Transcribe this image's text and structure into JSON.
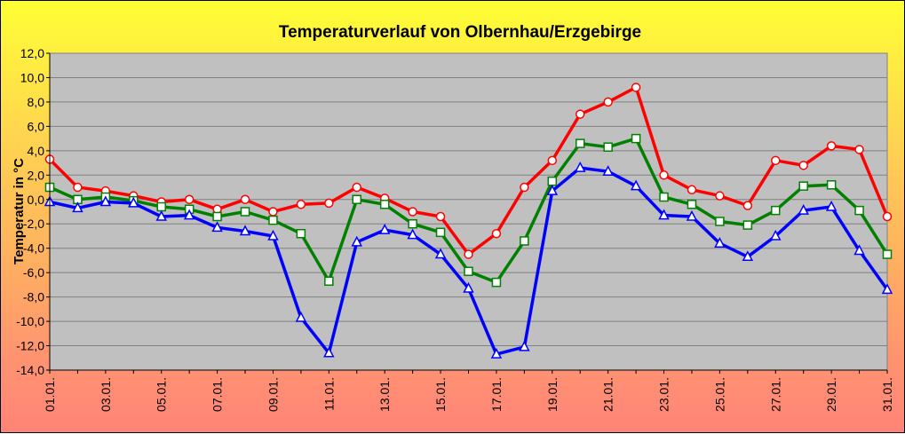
{
  "chart_data": {
    "type": "line",
    "title": "Temperaturverlauf von Olbernhau/Erzgebirge",
    "xlabel": "",
    "ylabel": "Temperatur in °C",
    "ylim": [
      -14,
      12
    ],
    "y_ticks": [
      "12,0",
      "10,0",
      "8,0",
      "6,0",
      "4,0",
      "2,0",
      "0,0",
      "-2,0",
      "-4,0",
      "-6,0",
      "-8,0",
      "-10,0",
      "-12,0",
      "-14,0"
    ],
    "x": [
      "01.01.",
      "02.01.",
      "03.01.",
      "04.01.",
      "05.01.",
      "06.01.",
      "07.01.",
      "08.01.",
      "09.01.",
      "10.01.",
      "11.01.",
      "12.01.",
      "13.01.",
      "14.01.",
      "15.01.",
      "16.01.",
      "17.01.",
      "18.01.",
      "19.01.",
      "20.01.",
      "21.01.",
      "22.01.",
      "23.01.",
      "24.01.",
      "25.01.",
      "26.01.",
      "27.01.",
      "28.01.",
      "29.01.",
      "30.01.",
      "31.01."
    ],
    "x_tick_labels": [
      "01.01.",
      "03.01.",
      "05.01.",
      "07.01.",
      "09.01.",
      "11.01.",
      "13.01.",
      "15.01.",
      "17.01.",
      "19.01.",
      "21.01.",
      "23.01.",
      "25.01.",
      "27.01.",
      "29.01.",
      "31.01."
    ],
    "grid": true,
    "legend": "none",
    "plot_background": "#c0c0c0",
    "series": [
      {
        "color": "#ff0000",
        "marker": "circle",
        "values": [
          3.3,
          1.0,
          0.7,
          0.3,
          -0.2,
          0.0,
          -0.8,
          0.0,
          -1.0,
          -0.4,
          -0.3,
          1.0,
          0.1,
          -1.0,
          -1.4,
          -4.5,
          -2.8,
          1.0,
          3.2,
          7.0,
          8.0,
          9.2,
          2.0,
          0.8,
          0.3,
          -0.5,
          3.2,
          2.8,
          4.4,
          4.1,
          -1.4
        ]
      },
      {
        "color": "#008000",
        "marker": "square",
        "values": [
          1.0,
          0.0,
          0.2,
          -0.1,
          -0.6,
          -0.8,
          -1.4,
          -1.0,
          -1.7,
          -2.8,
          -6.7,
          0.0,
          -0.4,
          -2.0,
          -2.7,
          -5.9,
          -6.8,
          -3.4,
          1.5,
          4.6,
          4.3,
          5.0,
          0.2,
          -0.4,
          -1.8,
          -2.1,
          -0.9,
          1.1,
          1.2,
          -0.9,
          -4.5
        ]
      },
      {
        "color": "#0000ff",
        "marker": "triangle",
        "values": [
          -0.2,
          -0.7,
          -0.2,
          -0.3,
          -1.4,
          -1.3,
          -2.3,
          -2.6,
          -3.0,
          -9.7,
          -12.6,
          -3.5,
          -2.5,
          -2.9,
          -4.5,
          -7.3,
          -12.7,
          -12.1,
          0.7,
          2.6,
          2.3,
          1.1,
          -1.3,
          -1.4,
          -3.6,
          -4.7,
          -3.0,
          -0.9,
          -0.6,
          -4.2,
          -7.4
        ]
      }
    ]
  }
}
